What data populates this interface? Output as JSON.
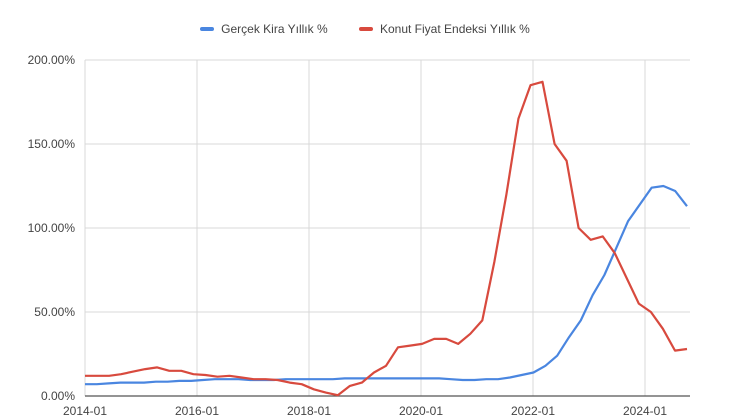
{
  "chart_data": {
    "type": "line",
    "title": "",
    "xlabel": "",
    "ylabel": "",
    "ylim": [
      0,
      200
    ],
    "y_ticks": [
      "0.00%",
      "50.00%",
      "100.00%",
      "150.00%",
      "200.00%"
    ],
    "x_ticks": [
      "2014-01",
      "2016-01",
      "2018-01",
      "2020-01",
      "2022-01",
      "2024-01"
    ],
    "grid": true,
    "legend_position": "top",
    "x_start": "2014-01",
    "x_step_months": 3,
    "series": [
      {
        "name": "Gerçek Kira Yıllık %",
        "color": "#4a86e0",
        "values": [
          7,
          7,
          7.5,
          8,
          8,
          8,
          8.5,
          8.5,
          9,
          9,
          9.5,
          10,
          10,
          10,
          9.5,
          9.5,
          9.5,
          10,
          10,
          10,
          10,
          10,
          10.5,
          10.5,
          10.5,
          10.5,
          10.5,
          10.5,
          10.5,
          10.5,
          10.5,
          10,
          9.5,
          9.5,
          10,
          10,
          11,
          12.5,
          14,
          18,
          24,
          35,
          45,
          60,
          72,
          88,
          104,
          114,
          124,
          125,
          122,
          113
        ]
      },
      {
        "name": "Konut Fiyat Endeksi Yıllık %",
        "color": "#d84a3e",
        "values": [
          12,
          12,
          12,
          13,
          14.5,
          16,
          17,
          15,
          15,
          13,
          12.5,
          11.5,
          12,
          11,
          10,
          10,
          9.5,
          8,
          7,
          4,
          2,
          0.5,
          6,
          8,
          14,
          18,
          29,
          30,
          31,
          34,
          34,
          31,
          37,
          45,
          80,
          120,
          165,
          185,
          187,
          150,
          140,
          100,
          93,
          95,
          85,
          70,
          55,
          50,
          40,
          27,
          28
        ]
      }
    ]
  },
  "legend": {
    "items": [
      {
        "label": "Gerçek Kira Yıllık %",
        "color": "#4a86e0"
      },
      {
        "label": "Konut Fiyat Endeksi Yıllık %",
        "color": "#d84a3e"
      }
    ]
  }
}
